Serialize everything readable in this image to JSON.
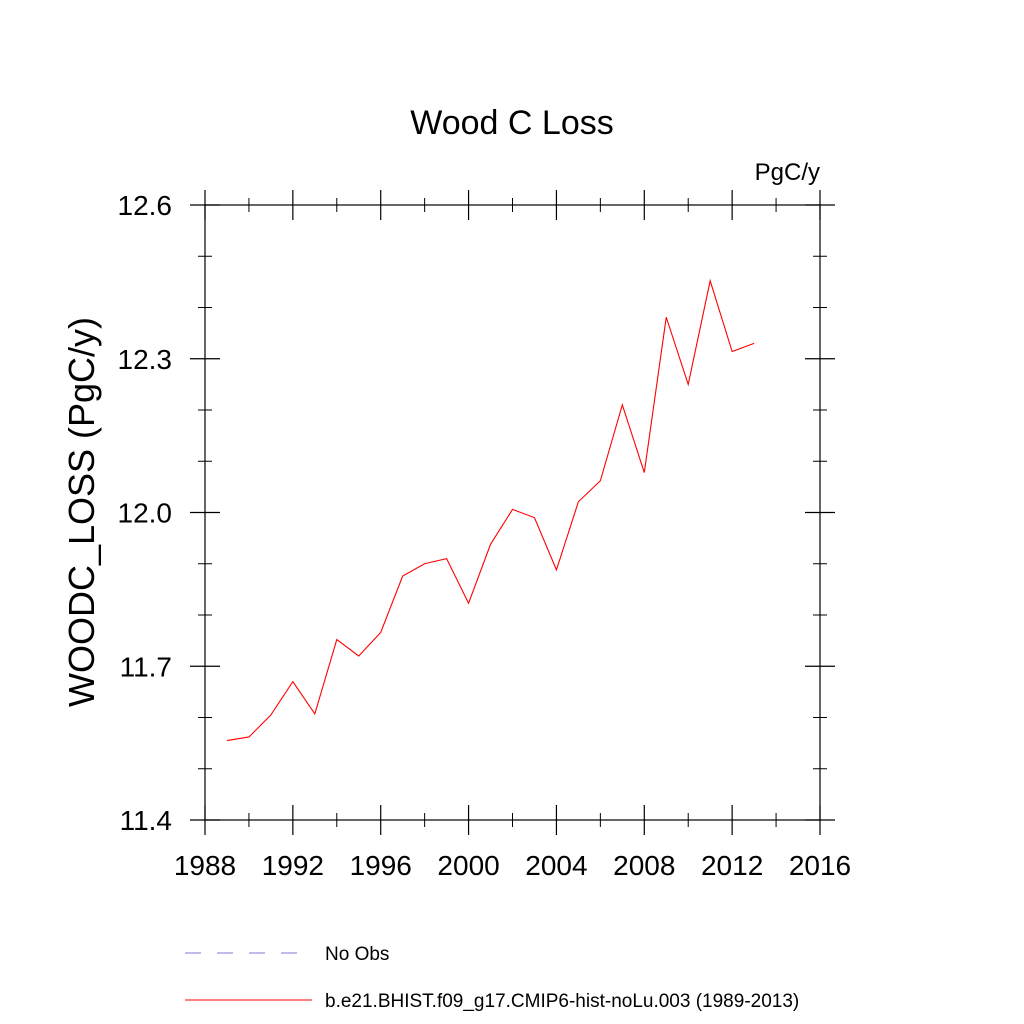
{
  "chart_data": {
    "type": "line",
    "title": "Wood C Loss",
    "units_label": "PgC/y",
    "ylabel": "WOODC_LOSS  (PgC/y)",
    "xlabel": "",
    "xlim": [
      1988,
      2016
    ],
    "ylim": [
      11.4,
      12.6
    ],
    "x_ticks": [
      1988,
      1992,
      1996,
      2000,
      2004,
      2008,
      2012,
      2016
    ],
    "x_tick_labels": [
      "1988",
      "1992",
      "1996",
      "2000",
      "2004",
      "2008",
      "2012",
      "2016"
    ],
    "y_ticks": [
      11.4,
      11.7,
      12.0,
      12.3,
      12.6
    ],
    "y_tick_labels": [
      "11.4",
      "11.7",
      "12.0",
      "12.3",
      "12.6"
    ],
    "x_minor_step": 2,
    "y_minor_step": 0.1,
    "grid": false,
    "legend_position": "bottom",
    "series": [
      {
        "name": "b.e21.BHIST.f09_g17.CMIP6-hist-noLu.003 (1989-2013)",
        "color": "#ff0000",
        "style": "solid",
        "x": [
          1989,
          1990,
          1991,
          1992,
          1993,
          1994,
          1995,
          1996,
          1997,
          1998,
          1999,
          2000,
          2001,
          2002,
          2003,
          2004,
          2005,
          2006,
          2007,
          2008,
          2009,
          2010,
          2011,
          2012,
          2013
        ],
        "y": [
          11.555,
          11.562,
          11.605,
          11.67,
          11.607,
          11.752,
          11.72,
          11.766,
          11.876,
          11.9,
          11.91,
          11.823,
          11.938,
          12.006,
          11.99,
          11.888,
          12.021,
          12.062,
          12.21,
          12.078,
          12.381,
          12.25,
          12.452,
          12.314,
          12.33
        ]
      }
    ],
    "legend": [
      {
        "label": "No Obs",
        "color": "#7b7bd6",
        "style": "dashed"
      },
      {
        "label": "b.e21.BHIST.f09_g17.CMIP6-hist-noLu.003 (1989-2013)",
        "color": "#ff0000",
        "style": "solid"
      }
    ]
  }
}
